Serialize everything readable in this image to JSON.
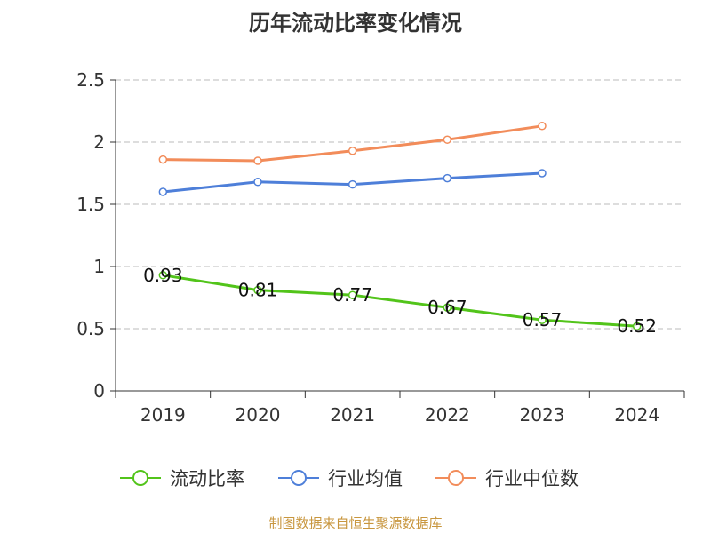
{
  "chart_data": {
    "type": "line",
    "title": "历年流动比率变化情况",
    "categories": [
      "2019",
      "2020",
      "2021",
      "2022",
      "2023",
      "2024"
    ],
    "ylim": [
      0,
      2.5
    ],
    "yticks": [
      "0",
      "0.5",
      "1",
      "1.5",
      "2",
      "2.5"
    ],
    "grid": true,
    "legend_position": "bottom",
    "series": [
      {
        "name": "流动比率",
        "color": "#52c41a",
        "values": [
          0.93,
          0.81,
          0.77,
          0.67,
          0.57,
          0.52
        ],
        "labels": [
          "0.93",
          "0.81",
          "0.77",
          "0.67",
          "0.57",
          "0.52"
        ]
      },
      {
        "name": "行业均值",
        "color": "#4e7fd9",
        "values": [
          1.6,
          1.68,
          1.66,
          1.71,
          1.75,
          null
        ]
      },
      {
        "name": "行业中位数",
        "color": "#f28c5a",
        "values": [
          1.86,
          1.85,
          1.93,
          2.02,
          2.13,
          null
        ]
      }
    ]
  },
  "footer": {
    "source": "制图数据来自恒生聚源数据库"
  }
}
